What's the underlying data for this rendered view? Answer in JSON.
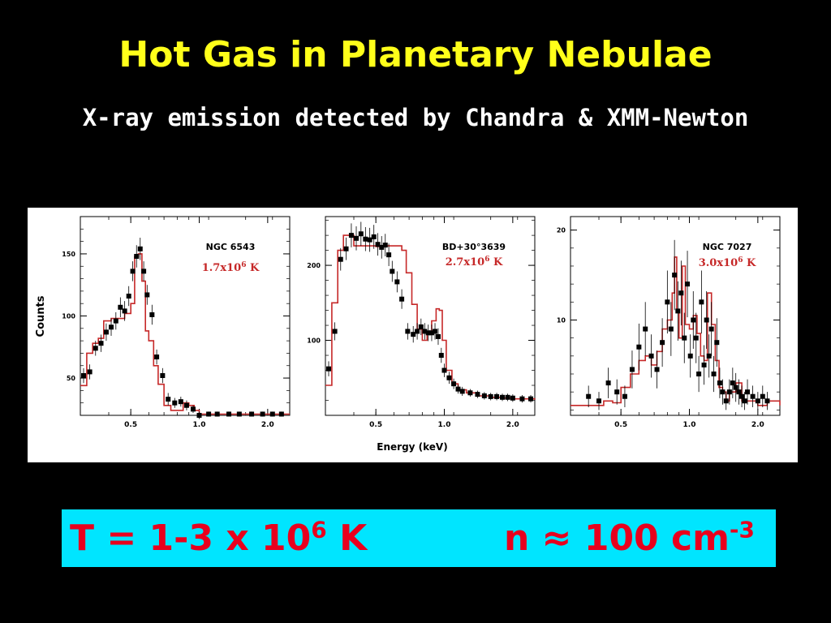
{
  "slide": {
    "title": "Hot Gas in Planetary Nebulae",
    "subtitle": "X-ray emission detected by Chandra & XMM-Newton",
    "result": {
      "temp_prefix": "T = 1-3 x 10",
      "temp_exp": "6",
      "temp_suffix": " K",
      "dens_prefix": "n ≈ 100 cm",
      "dens_exp": "-3"
    }
  },
  "colors": {
    "title": "#ffff1a",
    "model": "#c62828",
    "data": "#000000",
    "result_bg": "#00e5ff",
    "result_text": "#e8001d"
  },
  "figure": {
    "ylabel": "Counts",
    "xlabel": "Energy  (keV)"
  },
  "chart_data": [
    {
      "type": "scatter",
      "name": "NGC 6543",
      "temp_label": "1.7x10",
      "temp_exp": "6",
      "temp_unit": " K",
      "ylabel": "Counts",
      "x_scale": "log",
      "xlim": [
        0.3,
        2.5
      ],
      "ylim": [
        20,
        180
      ],
      "xticks": [
        0.5,
        1.0,
        2.0
      ],
      "xticklabels": [
        "0.5",
        "1.0",
        "2.0"
      ],
      "yticks": [
        50,
        100,
        150
      ],
      "yticklabels": [
        "50",
        "100",
        "150"
      ],
      "data": {
        "x": [
          0.31,
          0.33,
          0.35,
          0.37,
          0.39,
          0.41,
          0.43,
          0.45,
          0.47,
          0.49,
          0.51,
          0.53,
          0.55,
          0.57,
          0.59,
          0.62,
          0.65,
          0.69,
          0.73,
          0.78,
          0.83,
          0.88,
          0.94,
          1.0,
          1.1,
          1.2,
          1.35,
          1.5,
          1.7,
          1.9,
          2.1,
          2.3
        ],
        "y": [
          52,
          55,
          74,
          78,
          87,
          91,
          96,
          107,
          104,
          116,
          136,
          148,
          154,
          136,
          117,
          101,
          67,
          52,
          33,
          30,
          31,
          28,
          25,
          20,
          21,
          21,
          21,
          21,
          21,
          21,
          21,
          21
        ],
        "yerr": [
          6,
          6,
          6,
          7,
          7,
          7,
          7,
          8,
          8,
          8,
          8,
          9,
          9,
          8,
          8,
          8,
          6,
          6,
          5,
          4,
          4,
          4,
          3,
          3,
          2,
          2,
          2,
          2,
          2,
          2,
          2,
          2
        ]
      },
      "model": {
        "x": [
          0.3,
          0.32,
          0.34,
          0.36,
          0.38,
          0.41,
          0.44,
          0.47,
          0.5,
          0.52,
          0.54,
          0.56,
          0.58,
          0.6,
          0.63,
          0.66,
          0.7,
          0.75,
          0.8,
          0.85,
          0.9,
          0.95,
          1.0,
          1.1,
          1.2,
          1.5,
          2.0,
          2.5
        ],
        "y": [
          44,
          70,
          78,
          82,
          96,
          98,
          98,
          102,
          110,
          148,
          150,
          128,
          88,
          80,
          60,
          45,
          28,
          24,
          24,
          30,
          28,
          24,
          21,
          21,
          21,
          21,
          21,
          21
        ]
      }
    },
    {
      "type": "scatter",
      "name": "BD+30°3639",
      "temp_label": "2.7x10",
      "temp_exp": "6",
      "temp_unit": " K",
      "x_scale": "log",
      "xlim": [
        0.3,
        2.5
      ],
      "ylim": [
        0,
        265
      ],
      "xticks": [
        0.5,
        1.0,
        2.0
      ],
      "xticklabels": [
        "0.5",
        "1.0",
        "2.0"
      ],
      "yticks": [
        100,
        200
      ],
      "yticklabels": [
        "100",
        "200"
      ],
      "data": {
        "x": [
          0.31,
          0.33,
          0.35,
          0.37,
          0.39,
          0.41,
          0.43,
          0.45,
          0.47,
          0.49,
          0.51,
          0.53,
          0.55,
          0.57,
          0.59,
          0.62,
          0.65,
          0.69,
          0.73,
          0.76,
          0.79,
          0.82,
          0.85,
          0.88,
          0.91,
          0.94,
          0.97,
          1.0,
          1.05,
          1.1,
          1.15,
          1.2,
          1.3,
          1.4,
          1.5,
          1.6,
          1.7,
          1.8,
          1.9,
          2.0,
          2.2,
          2.4
        ],
        "y": [
          62,
          112,
          208,
          222,
          240,
          236,
          242,
          235,
          234,
          238,
          228,
          224,
          227,
          214,
          192,
          178,
          155,
          112,
          108,
          112,
          118,
          112,
          110,
          110,
          112,
          105,
          80,
          60,
          50,
          42,
          35,
          32,
          30,
          28,
          26,
          25,
          25,
          24,
          24,
          23,
          22,
          22
        ],
        "yerr": [
          10,
          12,
          15,
          15,
          16,
          16,
          16,
          16,
          16,
          16,
          15,
          15,
          15,
          15,
          14,
          14,
          13,
          11,
          11,
          11,
          11,
          11,
          11,
          11,
          11,
          11,
          10,
          9,
          8,
          7,
          6,
          6,
          5,
          5,
          5,
          5,
          5,
          5,
          5,
          5,
          5,
          5
        ]
      },
      "model": {
        "x": [
          0.3,
          0.32,
          0.34,
          0.36,
          0.38,
          0.4,
          0.45,
          0.5,
          0.55,
          0.6,
          0.65,
          0.68,
          0.72,
          0.76,
          0.8,
          0.84,
          0.88,
          0.92,
          0.95,
          0.98,
          1.02,
          1.08,
          1.15,
          1.25,
          1.4,
          1.6,
          1.8,
          2.0,
          2.5
        ],
        "y": [
          40,
          150,
          220,
          240,
          240,
          226,
          226,
          225,
          226,
          226,
          220,
          190,
          148,
          115,
          100,
          108,
          126,
          142,
          140,
          100,
          60,
          42,
          34,
          30,
          26,
          24,
          23,
          22,
          21
        ]
      }
    },
    {
      "type": "scatter",
      "name": "NGC 7027",
      "temp_label": "3.0x10",
      "temp_exp": "6",
      "temp_unit": " K",
      "x_scale": "log",
      "xlim": [
        0.3,
        2.5
      ],
      "ylim": [
        -0.6,
        21.5
      ],
      "xticks": [
        0.5,
        1.0,
        2.0
      ],
      "xticklabels": [
        "0.5",
        "1.0",
        "2.0"
      ],
      "yticks": [
        10,
        20
      ],
      "yticklabels": [
        "10",
        "20"
      ],
      "data": {
        "x": [
          0.36,
          0.4,
          0.44,
          0.48,
          0.52,
          0.56,
          0.6,
          0.64,
          0.68,
          0.72,
          0.76,
          0.8,
          0.83,
          0.86,
          0.89,
          0.92,
          0.95,
          0.98,
          1.01,
          1.04,
          1.07,
          1.1,
          1.13,
          1.16,
          1.19,
          1.22,
          1.25,
          1.28,
          1.32,
          1.36,
          1.4,
          1.45,
          1.5,
          1.55,
          1.6,
          1.65,
          1.7,
          1.75,
          1.8,
          1.9,
          2.0,
          2.1,
          2.2
        ],
        "y": [
          1.5,
          1.0,
          3.0,
          2.0,
          1.5,
          4.5,
          7.0,
          9.0,
          6.0,
          4.5,
          7.5,
          12.0,
          9.0,
          15.0,
          11.0,
          13.0,
          8.0,
          14.0,
          6.0,
          10.0,
          8.0,
          4.0,
          12.0,
          5.0,
          10.0,
          6.0,
          9.0,
          4.0,
          7.5,
          3.0,
          2.0,
          1.0,
          2.0,
          3.0,
          2.5,
          2.0,
          1.5,
          1.0,
          2.0,
          1.5,
          1.0,
          1.5,
          1.0
        ],
        "yerr": [
          1.2,
          1.0,
          1.7,
          1.4,
          1.2,
          2.1,
          2.6,
          3.0,
          2.4,
          2.1,
          2.7,
          3.5,
          3.0,
          3.9,
          3.3,
          3.6,
          2.8,
          3.7,
          2.4,
          3.2,
          2.8,
          2.0,
          3.5,
          2.2,
          3.2,
          2.4,
          3.0,
          2.0,
          2.7,
          1.7,
          1.4,
          1.0,
          1.4,
          1.7,
          1.6,
          1.4,
          1.2,
          1.0,
          1.4,
          1.2,
          1.0,
          1.2,
          1.0
        ]
      },
      "model": {
        "x": [
          0.3,
          0.36,
          0.42,
          0.46,
          0.5,
          0.55,
          0.6,
          0.64,
          0.68,
          0.72,
          0.76,
          0.8,
          0.84,
          0.86,
          0.88,
          0.9,
          0.93,
          0.96,
          1.0,
          1.04,
          1.08,
          1.12,
          1.16,
          1.2,
          1.25,
          1.3,
          1.35,
          1.4,
          1.45,
          1.5,
          1.6,
          1.7,
          1.8,
          2.0,
          2.2,
          2.5
        ],
        "y": [
          0.5,
          0.5,
          1.0,
          0.8,
          2.5,
          4.0,
          5.5,
          6.0,
          5.0,
          6.5,
          9.0,
          10.0,
          13.0,
          17.0,
          11.0,
          8.0,
          16.0,
          9.5,
          9.0,
          10.5,
          8.5,
          6.0,
          5.5,
          13.0,
          9.5,
          5.5,
          2.5,
          2.0,
          1.0,
          2.0,
          3.0,
          1.0,
          1.0,
          0.5,
          1.0,
          0.5
        ]
      }
    }
  ]
}
